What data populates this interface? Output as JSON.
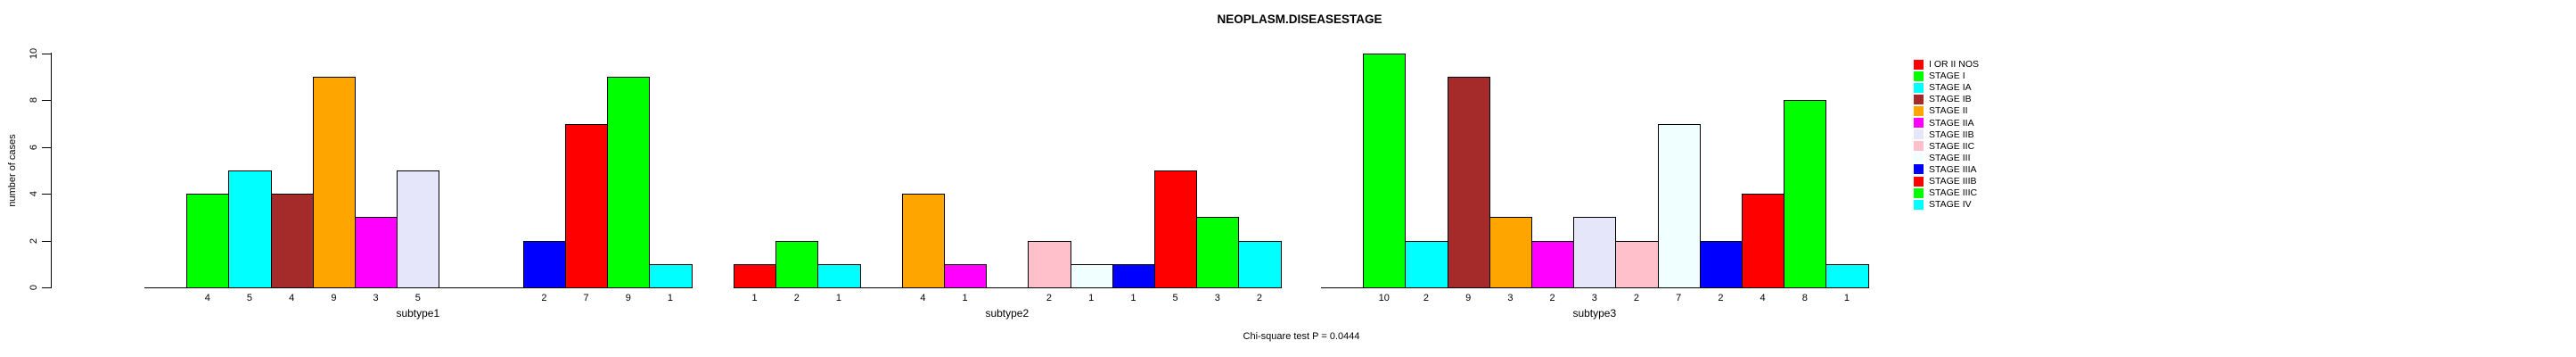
{
  "title": "NEOPLASM.DISEASESTAGE",
  "caption": "Chi-square test P = 0.0444",
  "chart_data": {
    "type": "bar",
    "title": "NEOPLASM.DISEASESTAGE",
    "xlabel": "",
    "ylabel": "number of cases",
    "ylim": [
      0,
      10
    ],
    "yticks": [
      0,
      2,
      4,
      6,
      8,
      10
    ],
    "grid": false,
    "legend_position": "right",
    "annotation": "Chi-square test P = 0.0444",
    "stages": [
      {
        "label": "I OR II NOS",
        "color": "#FF0000"
      },
      {
        "label": "STAGE I",
        "color": "#00FF00"
      },
      {
        "label": "STAGE IA",
        "color": "#00FFFF"
      },
      {
        "label": "STAGE IB",
        "color": "#A52A2A"
      },
      {
        "label": "STAGE II",
        "color": "#FFA500"
      },
      {
        "label": "STAGE IIA",
        "color": "#FF00FF"
      },
      {
        "label": "STAGE IIB",
        "color": "#E6E6FA"
      },
      {
        "label": "STAGE IIC",
        "color": "#FFC0CB"
      },
      {
        "label": "STAGE III",
        "color": "#F0FFFF"
      },
      {
        "label": "STAGE IIIA",
        "color": "#0000FF"
      },
      {
        "label": "STAGE IIIB",
        "color": "#FF0000"
      },
      {
        "label": "STAGE IIIC",
        "color": "#00FF00"
      },
      {
        "label": "STAGE IV",
        "color": "#00FFFF"
      }
    ],
    "groups": [
      {
        "label": "subtype1",
        "values": [
          0,
          4,
          5,
          4,
          9,
          3,
          5,
          0,
          0,
          2,
          7,
          9,
          1
        ]
      },
      {
        "label": "subtype2",
        "values": [
          1,
          2,
          1,
          0,
          4,
          1,
          0,
          2,
          1,
          1,
          5,
          3,
          2
        ]
      },
      {
        "label": "subtype3",
        "values": [
          0,
          10,
          2,
          9,
          3,
          2,
          3,
          2,
          7,
          2,
          4,
          8,
          1
        ]
      }
    ]
  },
  "colors": {
    "axis": "#000000",
    "bar_border": "#000000",
    "background": "#FFFFFF"
  }
}
